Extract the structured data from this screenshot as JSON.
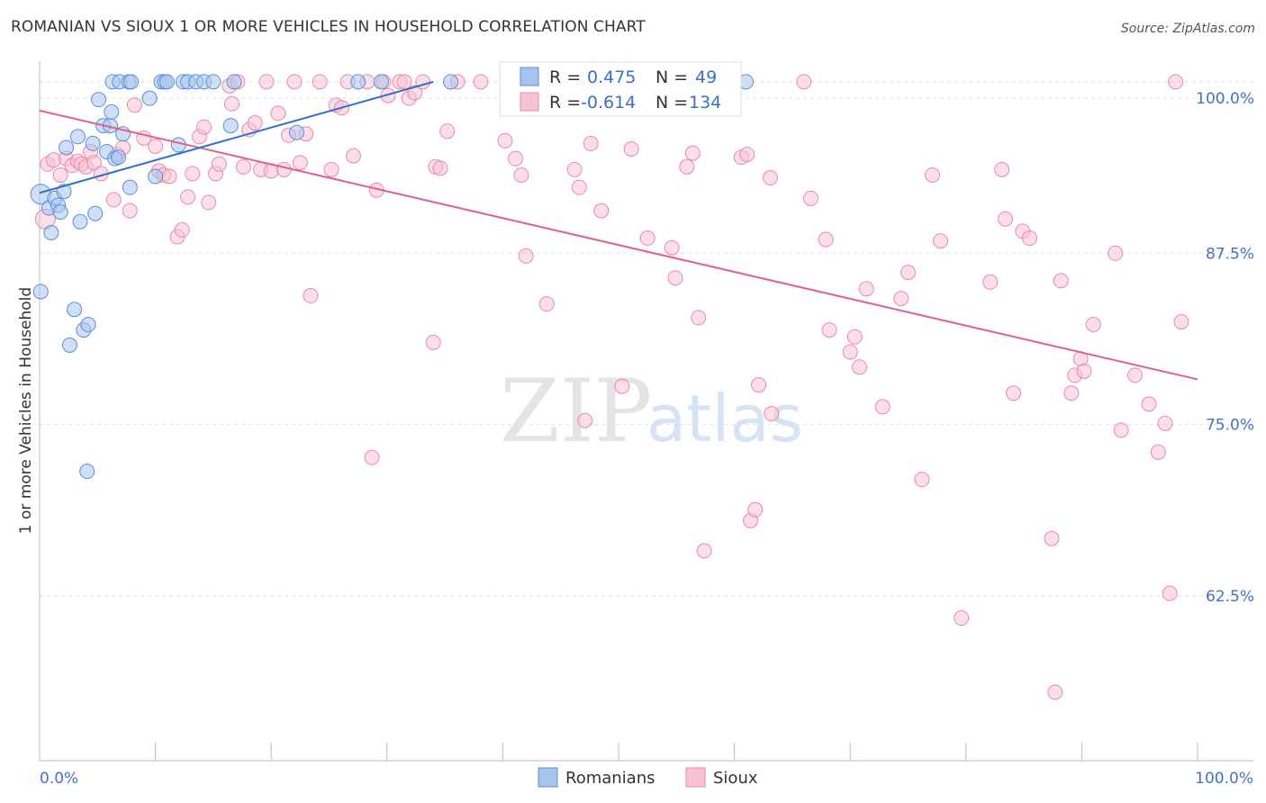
{
  "header": {
    "title": "ROMANIAN VS SIOUX 1 OR MORE VEHICLES IN HOUSEHOLD CORRELATION CHART",
    "source": "Source: ZipAtlas.com"
  },
  "watermark": {
    "zip": "ZIP",
    "atlas": "atlas"
  },
  "colors": {
    "blue_fill": "#a9c4ec",
    "blue_stroke": "#5b8fd8",
    "blue_line": "#2e6fd0",
    "pink_fill": "#f7c3d3",
    "pink_stroke": "#e98aa8",
    "pink_line": "#e0608e",
    "tick_text": "#4472c4",
    "grid": "#dddddd"
  },
  "legend": {
    "rows": [
      {
        "r_label": "R =",
        "r_value": "0.475",
        "n_label": "N =",
        "n_value": "49"
      },
      {
        "r_label": "R =",
        "r_value": "-0.614",
        "n_label": "N =",
        "n_value": "134"
      }
    ]
  },
  "chart_data": {
    "type": "scatter",
    "title": "ROMANIAN VS SIOUX 1 OR MORE VEHICLES IN HOUSEHOLD CORRELATION CHART",
    "xlabel": "",
    "ylabel": "1 or more Vehicles in Household",
    "xlim": [
      0,
      100
    ],
    "ylim": [
      50.5,
      101.5
    ],
    "x_tick_labels": [
      "0.0%",
      "100.0%"
    ],
    "y_ticks": [
      100.0,
      87.5,
      75.0,
      62.5
    ],
    "y_tick_labels": [
      "100.0%",
      "87.5%",
      "75.0%",
      "62.5%"
    ],
    "legend_position": "bottom-center",
    "series": [
      {
        "name": "Romanians",
        "r": 0.475,
        "n": 49,
        "trend": {
          "x": [
            0.0,
            34.0
          ],
          "y": [
            91.9,
            100.0
          ]
        },
        "points": [
          {
            "x": 0.1,
            "y": 91.8,
            "big": true
          },
          {
            "x": 0.1,
            "y": 84.7
          },
          {
            "x": 0.8,
            "y": 90.8
          },
          {
            "x": 1.0,
            "y": 89.0
          },
          {
            "x": 1.3,
            "y": 91.5
          },
          {
            "x": 1.6,
            "y": 91.0
          },
          {
            "x": 1.8,
            "y": 90.5
          },
          {
            "x": 2.1,
            "y": 92.0
          },
          {
            "x": 2.3,
            "y": 95.2
          },
          {
            "x": 2.6,
            "y": 80.8
          },
          {
            "x": 3.0,
            "y": 83.4
          },
          {
            "x": 3.3,
            "y": 96.0
          },
          {
            "x": 3.5,
            "y": 89.8
          },
          {
            "x": 3.8,
            "y": 81.9
          },
          {
            "x": 4.1,
            "y": 71.6
          },
          {
            "x": 4.2,
            "y": 82.3
          },
          {
            "x": 4.6,
            "y": 95.5
          },
          {
            "x": 4.8,
            "y": 90.4
          },
          {
            "x": 5.1,
            "y": 98.7
          },
          {
            "x": 5.5,
            "y": 96.8
          },
          {
            "x": 5.8,
            "y": 94.9
          },
          {
            "x": 6.1,
            "y": 96.8
          },
          {
            "x": 6.2,
            "y": 97.8
          },
          {
            "x": 6.5,
            "y": 94.4
          },
          {
            "x": 6.8,
            "y": 94.5
          },
          {
            "x": 7.2,
            "y": 96.2
          },
          {
            "x": 7.8,
            "y": 92.3
          },
          {
            "x": 6.3,
            "y": 100.0
          },
          {
            "x": 6.9,
            "y": 100.0
          },
          {
            "x": 7.7,
            "y": 100.0
          },
          {
            "x": 7.9,
            "y": 100.0
          },
          {
            "x": 9.5,
            "y": 98.8
          },
          {
            "x": 10.0,
            "y": 93.1
          },
          {
            "x": 10.5,
            "y": 100.0
          },
          {
            "x": 10.8,
            "y": 100.0
          },
          {
            "x": 11.0,
            "y": 100.0
          },
          {
            "x": 12.0,
            "y": 95.4
          },
          {
            "x": 12.4,
            "y": 100.0
          },
          {
            "x": 12.8,
            "y": 100.0
          },
          {
            "x": 13.5,
            "y": 100.0
          },
          {
            "x": 14.2,
            "y": 100.0
          },
          {
            "x": 15.0,
            "y": 100.0
          },
          {
            "x": 16.5,
            "y": 96.8
          },
          {
            "x": 16.8,
            "y": 100.0
          },
          {
            "x": 22.2,
            "y": 96.3
          },
          {
            "x": 27.5,
            "y": 100.0
          },
          {
            "x": 29.5,
            "y": 100.0
          },
          {
            "x": 35.5,
            "y": 100.0
          },
          {
            "x": 61.0,
            "y": 100.0
          }
        ]
      },
      {
        "name": "Sioux",
        "r": -0.614,
        "n": 134,
        "trend": {
          "x": [
            0.0,
            100.0
          ],
          "y": [
            97.9,
            78.3
          ]
        },
        "points": [
          {
            "x": 0.5,
            "y": 90.0,
            "big": true
          },
          {
            "x": 0.7,
            "y": 94.0
          },
          {
            "x": 1.2,
            "y": 94.3
          },
          {
            "x": 1.8,
            "y": 93.2
          },
          {
            "x": 2.3,
            "y": 94.4
          },
          {
            "x": 2.8,
            "y": 93.9
          },
          {
            "x": 3.3,
            "y": 94.2
          },
          {
            "x": 3.6,
            "y": 94.0
          },
          {
            "x": 4.0,
            "y": 93.8
          },
          {
            "x": 4.4,
            "y": 94.9
          },
          {
            "x": 4.7,
            "y": 94.1
          },
          {
            "x": 5.3,
            "y": 93.3
          },
          {
            "x": 6.4,
            "y": 91.4
          },
          {
            "x": 6.7,
            "y": 94.7
          },
          {
            "x": 7.2,
            "y": 95.2
          },
          {
            "x": 7.8,
            "y": 90.6
          },
          {
            "x": 8.2,
            "y": 98.3
          },
          {
            "x": 9.0,
            "y": 95.9
          },
          {
            "x": 10.0,
            "y": 95.3
          },
          {
            "x": 10.3,
            "y": 93.5
          },
          {
            "x": 10.7,
            "y": 93.2
          },
          {
            "x": 11.2,
            "y": 93.1
          },
          {
            "x": 11.9,
            "y": 88.7
          },
          {
            "x": 12.3,
            "y": 89.2
          },
          {
            "x": 12.8,
            "y": 91.6
          },
          {
            "x": 13.2,
            "y": 93.3
          },
          {
            "x": 13.8,
            "y": 96.0
          },
          {
            "x": 14.2,
            "y": 96.7
          },
          {
            "x": 14.6,
            "y": 91.2
          },
          {
            "x": 15.2,
            "y": 93.3
          },
          {
            "x": 15.5,
            "y": 94.0
          },
          {
            "x": 16.4,
            "y": 99.7
          },
          {
            "x": 16.6,
            "y": 98.4
          },
          {
            "x": 17.1,
            "y": 100.0
          },
          {
            "x": 17.6,
            "y": 93.8
          },
          {
            "x": 18.1,
            "y": 96.5
          },
          {
            "x": 18.6,
            "y": 97.0
          },
          {
            "x": 19.1,
            "y": 93.6
          },
          {
            "x": 19.6,
            "y": 100.0
          },
          {
            "x": 20.0,
            "y": 93.5
          },
          {
            "x": 20.6,
            "y": 97.7
          },
          {
            "x": 21.1,
            "y": 93.6
          },
          {
            "x": 21.5,
            "y": 96.1
          },
          {
            "x": 22.0,
            "y": 100.0
          },
          {
            "x": 22.5,
            "y": 94.1
          },
          {
            "x": 23.0,
            "y": 96.2
          },
          {
            "x": 23.4,
            "y": 84.4
          },
          {
            "x": 24.2,
            "y": 100.0
          },
          {
            "x": 25.2,
            "y": 93.6
          },
          {
            "x": 25.6,
            "y": 98.3
          },
          {
            "x": 26.1,
            "y": 98.1
          },
          {
            "x": 26.6,
            "y": 100.0
          },
          {
            "x": 27.1,
            "y": 94.6
          },
          {
            "x": 28.3,
            "y": 100.0
          },
          {
            "x": 28.7,
            "y": 72.6
          },
          {
            "x": 29.1,
            "y": 92.1
          },
          {
            "x": 29.7,
            "y": 100.0
          },
          {
            "x": 30.1,
            "y": 99.0
          },
          {
            "x": 31.1,
            "y": 100.0
          },
          {
            "x": 31.5,
            "y": 100.0
          },
          {
            "x": 31.9,
            "y": 98.8
          },
          {
            "x": 32.4,
            "y": 99.2
          },
          {
            "x": 33.1,
            "y": 100.0
          },
          {
            "x": 34.0,
            "y": 81.0
          },
          {
            "x": 34.2,
            "y": 93.8
          },
          {
            "x": 34.6,
            "y": 93.7
          },
          {
            "x": 35.2,
            "y": 96.4
          },
          {
            "x": 36.1,
            "y": 100.0
          },
          {
            "x": 38.1,
            "y": 100.0
          },
          {
            "x": 40.2,
            "y": 95.7
          },
          {
            "x": 41.1,
            "y": 94.4
          },
          {
            "x": 41.6,
            "y": 93.2
          },
          {
            "x": 42.0,
            "y": 87.3
          },
          {
            "x": 43.8,
            "y": 83.8
          },
          {
            "x": 44.2,
            "y": 100.0
          },
          {
            "x": 46.2,
            "y": 93.6
          },
          {
            "x": 46.6,
            "y": 92.3
          },
          {
            "x": 47.1,
            "y": 75.3
          },
          {
            "x": 47.6,
            "y": 95.5
          },
          {
            "x": 48.5,
            "y": 90.6
          },
          {
            "x": 50.3,
            "y": 77.8
          },
          {
            "x": 51.1,
            "y": 95.1
          },
          {
            "x": 51.9,
            "y": 100.0
          },
          {
            "x": 52.5,
            "y": 88.6
          },
          {
            "x": 54.1,
            "y": 100.0
          },
          {
            "x": 54.6,
            "y": 87.9
          },
          {
            "x": 54.9,
            "y": 85.7
          },
          {
            "x": 55.9,
            "y": 93.8
          },
          {
            "x": 56.4,
            "y": 94.8
          },
          {
            "x": 56.9,
            "y": 82.8
          },
          {
            "x": 57.4,
            "y": 65.8
          },
          {
            "x": 60.6,
            "y": 94.5
          },
          {
            "x": 61.1,
            "y": 94.7
          },
          {
            "x": 61.4,
            "y": 68.0
          },
          {
            "x": 61.8,
            "y": 68.8
          },
          {
            "x": 62.1,
            "y": 77.9
          },
          {
            "x": 63.2,
            "y": 75.8
          },
          {
            "x": 63.1,
            "y": 93.0
          },
          {
            "x": 66.0,
            "y": 100.0
          },
          {
            "x": 66.6,
            "y": 91.5
          },
          {
            "x": 67.9,
            "y": 88.5
          },
          {
            "x": 68.2,
            "y": 81.9
          },
          {
            "x": 70.0,
            "y": 80.3
          },
          {
            "x": 70.4,
            "y": 81.4
          },
          {
            "x": 70.8,
            "y": 79.2
          },
          {
            "x": 71.4,
            "y": 84.9
          },
          {
            "x": 72.8,
            "y": 76.3
          },
          {
            "x": 74.4,
            "y": 84.2
          },
          {
            "x": 75.0,
            "y": 86.1
          },
          {
            "x": 76.2,
            "y": 71.0
          },
          {
            "x": 77.1,
            "y": 93.2
          },
          {
            "x": 77.8,
            "y": 88.4
          },
          {
            "x": 79.6,
            "y": 60.9
          },
          {
            "x": 82.1,
            "y": 85.4
          },
          {
            "x": 83.1,
            "y": 93.6
          },
          {
            "x": 83.4,
            "y": 90.0
          },
          {
            "x": 84.1,
            "y": 77.3
          },
          {
            "x": 84.9,
            "y": 89.1
          },
          {
            "x": 85.5,
            "y": 88.6
          },
          {
            "x": 87.4,
            "y": 66.7
          },
          {
            "x": 87.7,
            "y": 55.5
          },
          {
            "x": 88.2,
            "y": 85.5
          },
          {
            "x": 89.1,
            "y": 77.3
          },
          {
            "x": 89.4,
            "y": 78.6
          },
          {
            "x": 89.9,
            "y": 79.8
          },
          {
            "x": 90.2,
            "y": 78.9
          },
          {
            "x": 91.0,
            "y": 82.3
          },
          {
            "x": 92.9,
            "y": 87.5
          },
          {
            "x": 93.4,
            "y": 74.6
          },
          {
            "x": 94.6,
            "y": 78.6
          },
          {
            "x": 95.8,
            "y": 76.5
          },
          {
            "x": 96.6,
            "y": 73.0
          },
          {
            "x": 97.2,
            "y": 75.1
          },
          {
            "x": 97.6,
            "y": 62.7
          },
          {
            "x": 98.1,
            "y": 100.0
          },
          {
            "x": 98.6,
            "y": 82.5
          }
        ]
      }
    ]
  },
  "bottom_legend": [
    "Romanians",
    "Sioux"
  ]
}
